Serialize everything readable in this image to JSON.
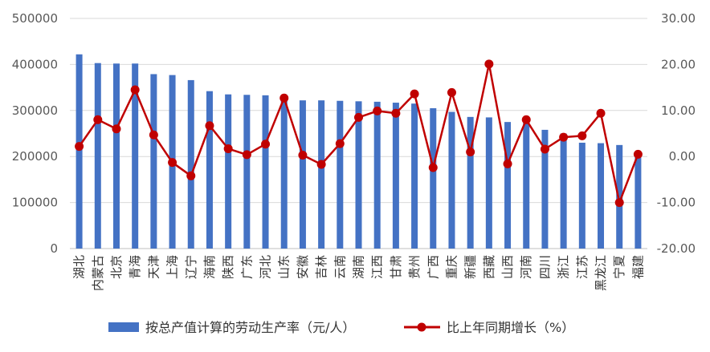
{
  "chart_data": {
    "type": "bar+line",
    "categories": [
      "湖北",
      "内蒙古",
      "北京",
      "青海",
      "天津",
      "上海",
      "辽宁",
      "海南",
      "陕西",
      "广东",
      "河北",
      "山东",
      "安徽",
      "吉林",
      "云南",
      "湖南",
      "江西",
      "甘肃",
      "贵州",
      "广西",
      "重庆",
      "新疆",
      "西藏",
      "山西",
      "河南",
      "四川",
      "浙江",
      "江苏",
      "黑龙江",
      "宁夏",
      "福建"
    ],
    "series": [
      {
        "name": "按总产值计算的劳动生产率（元/人）",
        "type": "bar",
        "axis": "left",
        "color": "#4472C4",
        "values": [
          422000,
          403000,
          402000,
          402000,
          379000,
          377000,
          366000,
          342000,
          335000,
          334000,
          333000,
          331000,
          322000,
          322000,
          321000,
          320000,
          319000,
          317000,
          315000,
          305000,
          297000,
          286000,
          285000,
          275000,
          275000,
          258000,
          250000,
          230000,
          229000,
          225000,
          205000
        ]
      },
      {
        "name": "比上年同期增长（%）",
        "type": "line",
        "axis": "right",
        "color": "#C00000",
        "values": [
          2.2,
          8.0,
          6.0,
          14.5,
          4.7,
          -1.3,
          -4.2,
          6.7,
          1.7,
          0.4,
          2.7,
          12.7,
          0.3,
          -1.7,
          2.8,
          8.5,
          9.9,
          9.4,
          13.6,
          -2.4,
          13.9,
          1.0,
          20.1,
          -1.6,
          8.0,
          1.6,
          4.2,
          4.5,
          9.4,
          -10.0,
          0.5
        ]
      }
    ],
    "y_left": {
      "range": [
        0,
        500000
      ],
      "ticks": [
        "0",
        "100000",
        "200000",
        "300000",
        "400000",
        "500000"
      ]
    },
    "y_right": {
      "range": [
        -20,
        30
      ],
      "ticks": [
        "-20.00",
        "-10.00",
        "0.00",
        "10.00",
        "20.00",
        "30.00"
      ]
    },
    "grid": true,
    "legend_position": "bottom"
  }
}
